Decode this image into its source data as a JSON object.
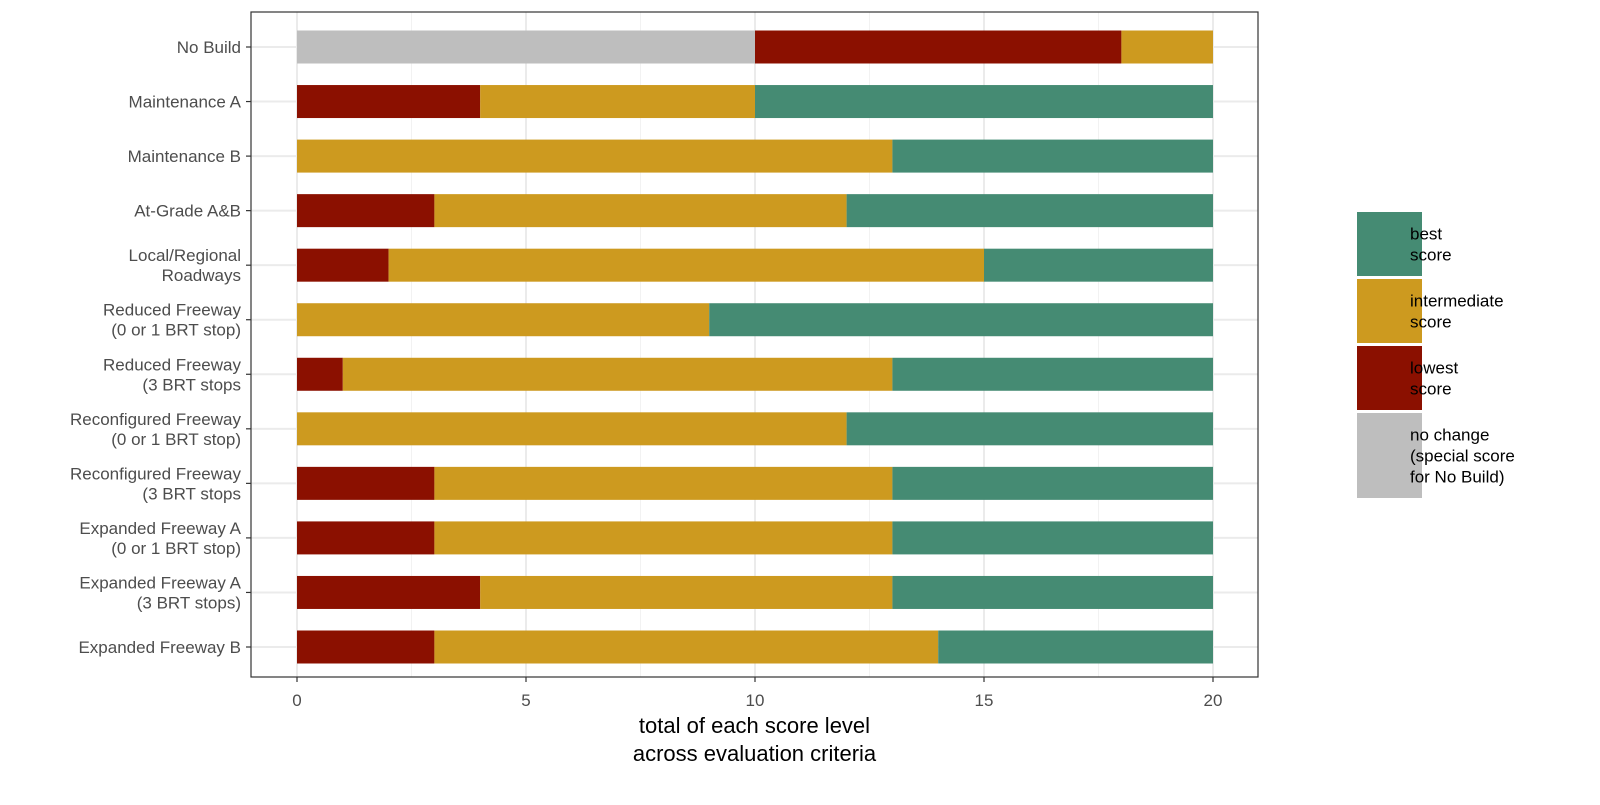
{
  "chart_data": {
    "type": "bar",
    "orientation": "horizontal",
    "stacked": true,
    "xlabel": [
      "total of each score level",
      "across evaluation criteria"
    ],
    "ylabel": "",
    "xlim": [
      0,
      20
    ],
    "xticks": [
      "0",
      "5",
      "10",
      "15",
      "20"
    ],
    "grid": true,
    "legend_position": "right",
    "categories": [
      [
        "No Build"
      ],
      [
        "Maintenance A"
      ],
      [
        "Maintenance B"
      ],
      [
        "At-Grade A&B"
      ],
      [
        "Local/Regional",
        "Roadways"
      ],
      [
        "Reduced Freeway",
        "(0 or 1 BRT stop)"
      ],
      [
        "Reduced Freeway",
        "(3 BRT stops"
      ],
      [
        "Reconfigured Freeway",
        "(0 or 1 BRT stop)"
      ],
      [
        "Reconfigured Freeway",
        "(3 BRT stops"
      ],
      [
        "Expanded Freeway A",
        "(0 or 1 BRT stop)"
      ],
      [
        "Expanded Freeway A",
        "(3 BRT stops)"
      ],
      [
        "Expanded Freeway B"
      ]
    ],
    "series": [
      {
        "name": "no change",
        "legend": [
          "no change",
          "(special score",
          "for No Build)"
        ],
        "color": "#bebebe",
        "values": [
          10,
          0,
          0,
          0,
          0,
          0,
          0,
          0,
          0,
          0,
          0,
          0
        ]
      },
      {
        "name": "lowest score",
        "legend": [
          "lowest",
          "score"
        ],
        "color": "#8b1000",
        "values": [
          8,
          4,
          0,
          3,
          2,
          0,
          1,
          0,
          3,
          3,
          4,
          3
        ]
      },
      {
        "name": "intermediate score",
        "legend": [
          "intermediate",
          "score"
        ],
        "color": "#cd9a1f",
        "values": [
          2,
          6,
          13,
          9,
          13,
          9,
          12,
          12,
          10,
          10,
          9,
          11
        ]
      },
      {
        "name": "best score",
        "legend": [
          "best",
          "score"
        ],
        "color": "#458b73",
        "values": [
          0,
          10,
          7,
          8,
          5,
          11,
          7,
          8,
          7,
          7,
          7,
          6
        ]
      }
    ],
    "legend_order": [
      "best score",
      "intermediate score",
      "lowest score",
      "no change"
    ]
  }
}
